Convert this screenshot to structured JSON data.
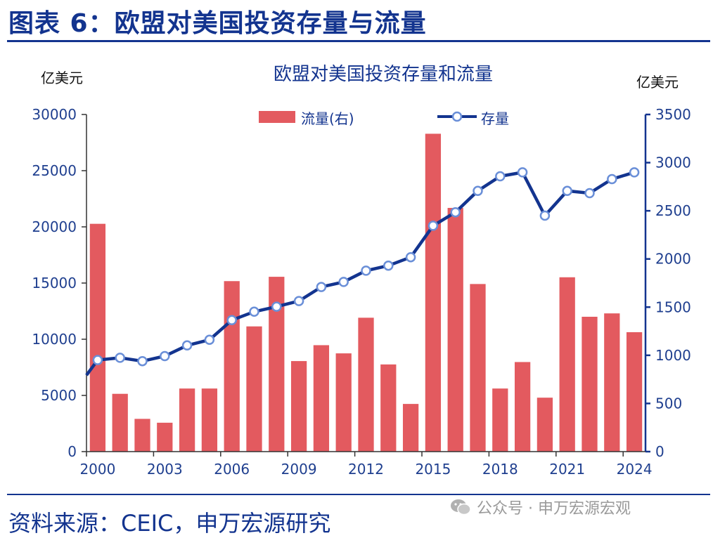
{
  "header": {
    "title": "图表 6：欧盟对美国投资存量与流量"
  },
  "footer": {
    "source": "资料来源：CEIC，申万宏源研究"
  },
  "watermark": {
    "text": "公众号 · 申万宏源宏观",
    "icon": "wechat-icon"
  },
  "colors": {
    "brand": "#13348f",
    "bar": "#e35a5f",
    "line": "#13348f",
    "marker_edge": "#6a8fd8",
    "axis_text": "#1f3f8f",
    "watermark": "#9a9a9a"
  },
  "chart_data": {
    "type": "bar+line",
    "title": "欧盟对美国投资存量和流量",
    "left_axis": {
      "unit": "亿美元",
      "min": 0,
      "max": 30000,
      "ticks": [
        0,
        5000,
        10000,
        15000,
        20000,
        25000,
        30000
      ]
    },
    "right_axis": {
      "unit": "亿美元",
      "min": 0,
      "max": 3500,
      "ticks": [
        0,
        500,
        1000,
        1500,
        2000,
        2500,
        3000,
        3500
      ]
    },
    "x_tick_labels": [
      "2000",
      "2003",
      "2006",
      "2009",
      "2012",
      "2015",
      "2018",
      "2021",
      "2024"
    ],
    "categories": [
      "2000",
      "2001",
      "2002",
      "2003",
      "2004",
      "2005",
      "2006",
      "2007",
      "2008",
      "2009",
      "2010",
      "2011",
      "2012",
      "2013",
      "2014",
      "2015",
      "2016",
      "2017",
      "2018",
      "2019",
      "2020",
      "2021",
      "2022",
      "2023",
      "2024"
    ],
    "series": [
      {
        "name": "流量(右)",
        "type": "bar",
        "axis": "right",
        "values": [
          2365,
          600,
          340,
          300,
          655,
          655,
          1770,
          1300,
          1815,
          940,
          1105,
          1020,
          1390,
          905,
          495,
          3300,
          2530,
          1740,
          655,
          930,
          560,
          1810,
          1400,
          1435,
          1240
        ]
      },
      {
        "name": "存量",
        "type": "line",
        "axis": "left",
        "x_start": "1999",
        "start_value": 6800,
        "values": [
          8150,
          8350,
          8050,
          8500,
          9450,
          9950,
          11700,
          12450,
          12900,
          13400,
          14650,
          15100,
          16100,
          16550,
          17300,
          20100,
          21300,
          23200,
          24500,
          24850,
          21000,
          23200,
          23000,
          24250,
          24850
        ]
      }
    ]
  }
}
